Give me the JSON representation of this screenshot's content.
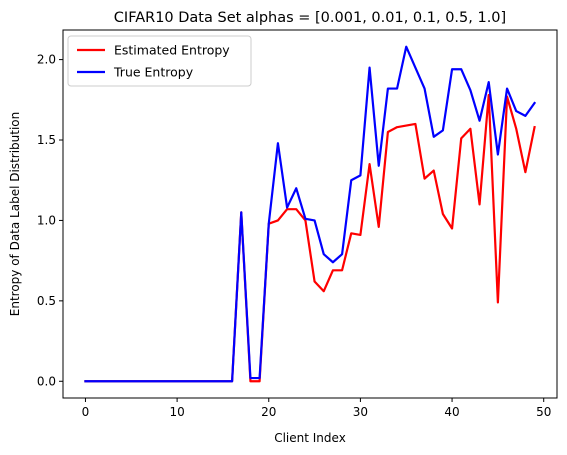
{
  "chart_data": {
    "type": "line",
    "title": "CIFAR10 Data Set alphas = [0.001, 0.01, 0.1, 0.5, 1.0]",
    "xlabel": "Client Index",
    "ylabel": "Entropy of Data Label Distribution",
    "xlim": [
      -2.45,
      51.45
    ],
    "ylim": [
      -0.104,
      2.184
    ],
    "xticks": [
      0,
      10,
      20,
      30,
      40,
      50
    ],
    "xtick_labels": [
      "0",
      "10",
      "20",
      "30",
      "40",
      "50"
    ],
    "yticks": [
      0.0,
      0.5,
      1.0,
      1.5,
      2.0
    ],
    "ytick_labels": [
      "0.0",
      "0.5",
      "1.0",
      "1.5",
      "2.0"
    ],
    "grid": false,
    "legend_position": "top-left",
    "x": [
      0,
      1,
      2,
      3,
      4,
      5,
      6,
      7,
      8,
      9,
      10,
      11,
      12,
      13,
      14,
      15,
      16,
      17,
      18,
      19,
      20,
      21,
      22,
      23,
      24,
      25,
      26,
      27,
      28,
      29,
      30,
      31,
      32,
      33,
      34,
      35,
      36,
      37,
      38,
      39,
      40,
      41,
      42,
      43,
      44,
      45,
      46,
      47,
      48,
      49
    ],
    "series": [
      {
        "name": "Estimated Entropy",
        "color": "#ff0000",
        "values": [
          0,
          0,
          0,
          0,
          0,
          0,
          0,
          0,
          0,
          0,
          0,
          0,
          0,
          0,
          0,
          0,
          0,
          1.05,
          0,
          0,
          0.98,
          1.0,
          1.07,
          1.07,
          1.0,
          0.62,
          0.56,
          0.69,
          0.69,
          0.92,
          0.91,
          1.35,
          0.96,
          1.55,
          1.58,
          1.59,
          1.6,
          1.26,
          1.31,
          1.04,
          0.95,
          1.51,
          1.57,
          1.1,
          1.78,
          0.49,
          1.77,
          1.57,
          1.3,
          1.58
        ]
      },
      {
        "name": "True Entropy",
        "color": "#0000ff",
        "values": [
          0,
          0,
          0,
          0,
          0,
          0,
          0,
          0,
          0,
          0,
          0,
          0,
          0,
          0,
          0,
          0,
          0,
          1.05,
          0.02,
          0.02,
          0.98,
          1.48,
          1.08,
          1.2,
          1.01,
          1.0,
          0.79,
          0.74,
          0.79,
          1.25,
          1.28,
          1.95,
          1.34,
          1.82,
          1.82,
          2.08,
          1.95,
          1.82,
          1.52,
          1.56,
          1.94,
          1.94,
          1.81,
          1.62,
          1.86,
          1.41,
          1.82,
          1.68,
          1.65,
          1.73
        ]
      }
    ]
  }
}
